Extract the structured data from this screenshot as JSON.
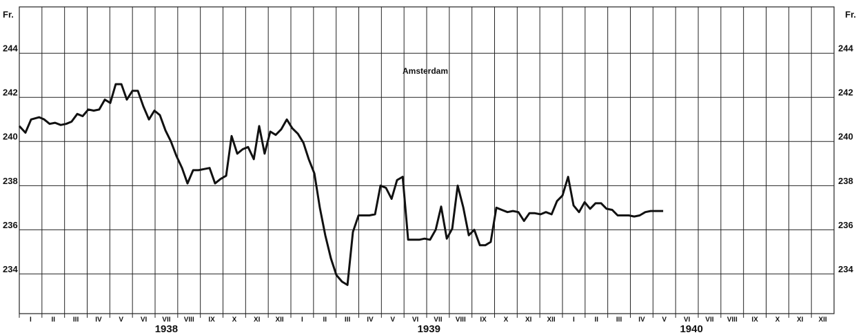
{
  "chart_data": {
    "type": "line",
    "y_label": "Fr.",
    "xlim": [
      0,
      36
    ],
    "ylim": [
      232.2,
      246.1
    ],
    "yticks": [
      234,
      236,
      238,
      240,
      242,
      244
    ],
    "grid": true,
    "xticks": [
      {
        "value": 0.5,
        "label": "I"
      },
      {
        "value": 1.5,
        "label": "II"
      },
      {
        "value": 2.5,
        "label": "III"
      },
      {
        "value": 3.5,
        "label": "IV"
      },
      {
        "value": 4.5,
        "label": "V"
      },
      {
        "value": 5.5,
        "label": "VI"
      },
      {
        "value": 6.5,
        "label": "VII"
      },
      {
        "value": 7.5,
        "label": "VIII"
      },
      {
        "value": 8.5,
        "label": "IX"
      },
      {
        "value": 9.5,
        "label": "X"
      },
      {
        "value": 10.5,
        "label": "XI"
      },
      {
        "value": 11.5,
        "label": "XII"
      },
      {
        "value": 12.5,
        "label": "I"
      },
      {
        "value": 13.5,
        "label": "II"
      },
      {
        "value": 14.5,
        "label": "III"
      },
      {
        "value": 15.5,
        "label": "IV"
      },
      {
        "value": 16.5,
        "label": "V"
      },
      {
        "value": 17.5,
        "label": "VI"
      },
      {
        "value": 18.5,
        "label": "VII"
      },
      {
        "value": 19.5,
        "label": "VIII"
      },
      {
        "value": 20.5,
        "label": "IX"
      },
      {
        "value": 21.5,
        "label": "X"
      },
      {
        "value": 22.5,
        "label": "XI"
      },
      {
        "value": 23.5,
        "label": "XII"
      },
      {
        "value": 24.5,
        "label": "I"
      },
      {
        "value": 25.5,
        "label": "II"
      },
      {
        "value": 26.5,
        "label": "III"
      },
      {
        "value": 27.5,
        "label": "IV"
      },
      {
        "value": 28.5,
        "label": "V"
      },
      {
        "value": 29.5,
        "label": "VI"
      },
      {
        "value": 30.5,
        "label": "VII"
      },
      {
        "value": 31.5,
        "label": "VIII"
      },
      {
        "value": 32.5,
        "label": "IX"
      },
      {
        "value": 33.5,
        "label": "X"
      },
      {
        "value": 34.5,
        "label": "XI"
      },
      {
        "value": 35.5,
        "label": "XII"
      }
    ],
    "x_groups": [
      {
        "value": 6.5,
        "label": "1938"
      },
      {
        "value": 18.1,
        "label": "1939"
      },
      {
        "value": 29.7,
        "label": "1940"
      }
    ],
    "series": [
      {
        "name": "Amsterdam",
        "color": "#111111",
        "x": [
          0,
          0.27,
          0.52,
          0.88,
          1.1,
          1.34,
          1.58,
          1.83,
          2.07,
          2.31,
          2.56,
          2.8,
          3.05,
          3.29,
          3.53,
          3.78,
          4.02,
          4.26,
          4.51,
          4.75,
          5.0,
          5.24,
          5.48,
          5.73,
          5.97,
          6.21,
          6.46,
          6.7,
          6.94,
          7.19,
          7.43,
          7.68,
          7.92,
          8.16,
          8.41,
          8.65,
          8.89,
          9.14,
          9.38,
          9.63,
          9.87,
          10.11,
          10.36,
          10.6,
          10.84,
          11.09,
          11.33,
          11.57,
          11.82,
          12.06,
          12.31,
          12.55,
          12.79,
          13.04,
          13.28,
          13.52,
          13.77,
          14.01,
          14.26,
          14.5,
          14.74,
          14.99,
          15.23,
          15.47,
          15.72,
          15.96,
          16.2,
          16.45,
          16.69,
          16.94,
          17.18,
          17.42,
          17.67,
          17.91,
          18.15,
          18.4,
          18.64,
          18.89,
          19.13,
          19.37,
          19.62,
          19.86,
          20.1,
          20.35,
          20.59,
          20.83,
          21.08,
          21.32,
          21.57,
          21.81,
          22.05,
          22.3,
          22.54,
          22.78,
          23.03,
          23.27,
          23.52,
          23.76,
          24.0,
          24.25,
          24.49,
          24.73,
          24.98,
          25.22,
          25.46,
          25.71,
          25.95,
          26.2,
          26.44,
          26.68,
          26.93,
          27.17,
          27.41,
          27.66,
          27.9,
          28.45
        ],
        "values": [
          240.7,
          240.4,
          241.0,
          241.1,
          241.0,
          240.8,
          240.85,
          240.75,
          240.8,
          240.9,
          241.25,
          241.15,
          241.45,
          241.4,
          241.45,
          241.9,
          241.75,
          242.6,
          242.6,
          241.9,
          242.3,
          242.3,
          241.6,
          241.0,
          241.4,
          241.2,
          240.5,
          240.0,
          239.35,
          238.8,
          238.1,
          238.7,
          238.7,
          238.75,
          238.8,
          238.1,
          238.3,
          238.45,
          240.25,
          239.45,
          239.65,
          239.75,
          239.2,
          240.7,
          239.45,
          240.45,
          240.3,
          240.55,
          241.0,
          240.6,
          240.35,
          239.95,
          239.2,
          238.55,
          237.0,
          235.75,
          234.7,
          233.95,
          233.65,
          233.5,
          235.9,
          236.65,
          236.65,
          236.65,
          236.7,
          238.0,
          237.9,
          237.4,
          238.25,
          238.4,
          235.55,
          235.55,
          235.55,
          235.6,
          235.55,
          236.0,
          237.05,
          235.6,
          236.05,
          238.0,
          237.0,
          235.75,
          236.0,
          235.3,
          235.3,
          235.45,
          237.0,
          236.9,
          236.8,
          236.85,
          236.8,
          236.4,
          236.75,
          236.75,
          236.7,
          236.8,
          236.7,
          237.3,
          237.55,
          238.4,
          237.1,
          236.8,
          237.25,
          236.95,
          237.2,
          237.2,
          236.95,
          236.9,
          236.65,
          236.65,
          236.65,
          236.6,
          236.65,
          236.8,
          236.85,
          236.85
        ]
      }
    ]
  }
}
